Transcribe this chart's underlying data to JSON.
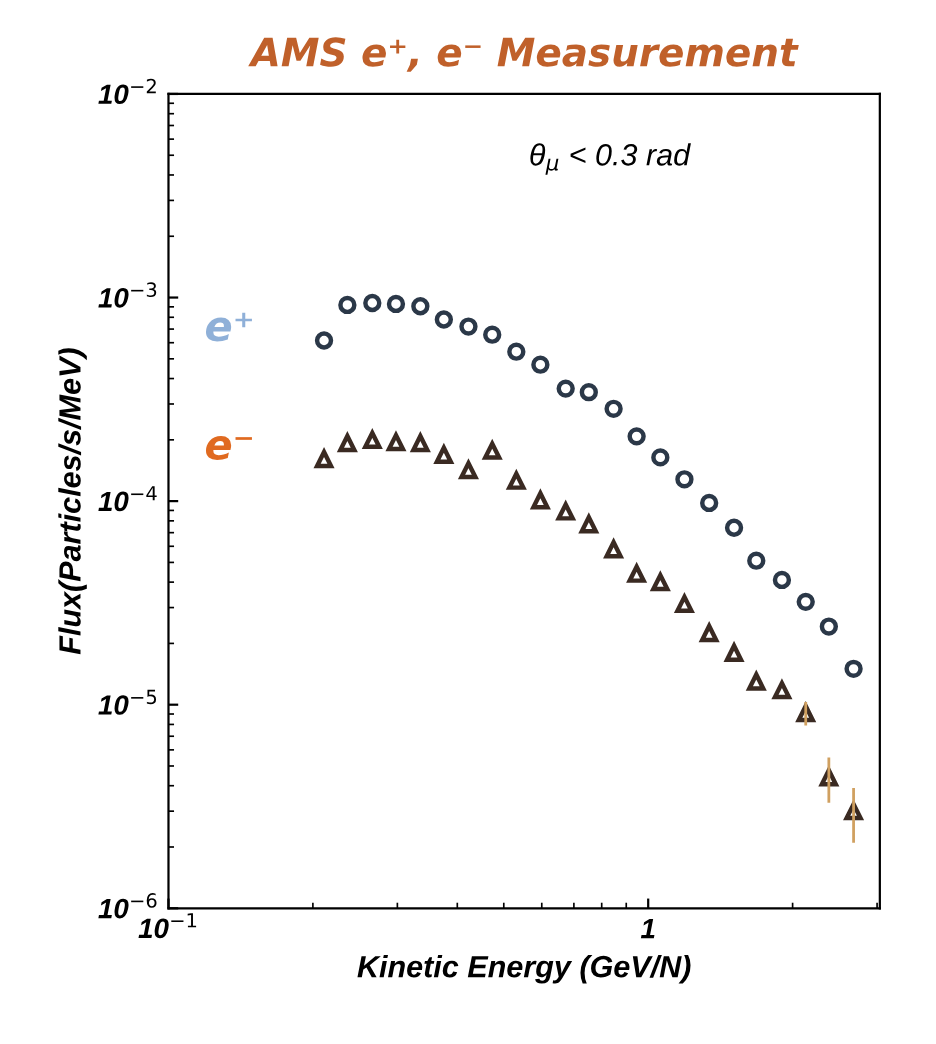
{
  "chart_data": {
    "type": "scatter",
    "title": "AMS e⁺, e⁻ Measurement",
    "xlabel": "Kinetic Energy (GeV/N)",
    "ylabel": "Flux(Particles/s/MeV)",
    "annotations": [
      "θ$_{μ}$ < 0.3 rad"
    ],
    "log": "xy",
    "xlim": [
      0.1,
      3.04
    ],
    "ylim": [
      1e-06,
      0.01
    ],
    "xticks": [
      {
        "value": 0.1,
        "label": "10$^{−1}$"
      },
      1
    ],
    "yticks": [
      {
        "value": 1e-06,
        "label": "10$^{−6}$"
      },
      {
        "value": 1e-05,
        "label": "10$^{−5}$"
      },
      {
        "value": 0.0001,
        "label": "10$^{−4}$"
      },
      {
        "value": 0.001,
        "label": "10$^{−3}$"
      },
      {
        "value": 0.01,
        "label": "10$^{−2}$"
      }
    ],
    "x": [
      0.211,
      0.236,
      0.266,
      0.298,
      0.335,
      0.375,
      0.422,
      0.473,
      0.531,
      0.596,
      0.673,
      0.752,
      0.847,
      0.946,
      1.06,
      1.19,
      1.34,
      1.51,
      1.68,
      1.9,
      2.13,
      2.38,
      2.68
    ],
    "series": [
      {
        "name": "e⁺",
        "color": "#2b3848",
        "marker": "circle",
        "values": [
          0.000615,
          0.00092,
          0.00094,
          0.00093,
          0.000906,
          0.00078,
          0.00072,
          0.000657,
          0.000542,
          0.000468,
          0.000357,
          0.000343,
          0.000284,
          0.000208,
          0.000164,
          0.000128,
          9.8e-05,
          7.4e-05,
          5.1e-05,
          4.1e-05,
          3.2e-05,
          2.42e-05,
          1.5e-05
        ]
      },
      {
        "name": "e⁻",
        "color": "#3a2a22",
        "marker": "triangle",
        "values": [
          0.000161,
          0.000193,
          0.0002,
          0.000195,
          0.000193,
          0.000169,
          0.000142,
          0.000177,
          0.000126,
          0.000101,
          8.9e-05,
          7.7e-05,
          5.8e-05,
          4.4e-05,
          4e-05,
          3.13e-05,
          2.25e-05,
          1.8e-05,
          1.3e-05,
          1.18e-05,
          9.1e-06,
          4.4e-06,
          3e-06
        ],
        "errors": [
          null,
          null,
          null,
          null,
          null,
          null,
          null,
          null,
          null,
          null,
          null,
          null,
          null,
          null,
          null,
          null,
          null,
          null,
          null,
          null,
          1.2e-06,
          1.1e-06,
          9e-07
        ]
      }
    ],
    "grid": false,
    "legend": false
  }
}
